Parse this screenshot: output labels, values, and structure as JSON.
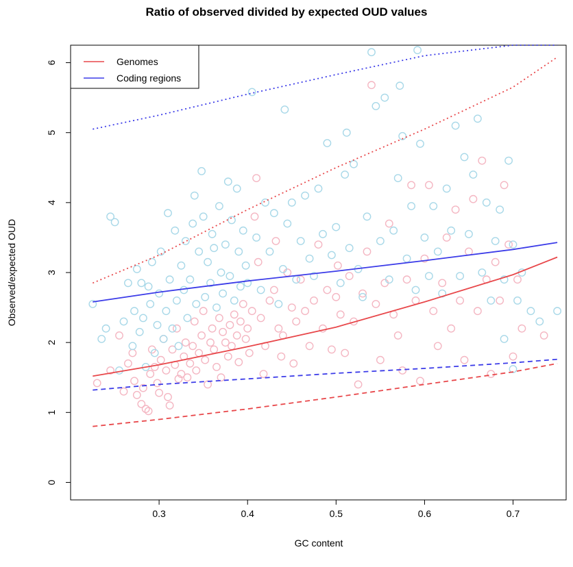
{
  "chart_data": {
    "type": "scatter",
    "title": "Ratio of observed divided by expected OUD values",
    "xlabel": "GC content",
    "ylabel": "Observed/expected OUD",
    "xlim": [
      0.2,
      0.76
    ],
    "ylim": [
      -0.25,
      6.25
    ],
    "x_ticks": [
      0.3,
      0.4,
      0.5,
      0.6,
      0.7
    ],
    "x_tick_labels": [
      "0.3",
      "0.4",
      "0.5",
      "0.6",
      "0.7"
    ],
    "y_ticks": [
      0,
      1,
      2,
      3,
      4,
      5,
      6
    ],
    "y_tick_labels": [
      "0",
      "1",
      "2",
      "3",
      "4",
      "5",
      "6"
    ],
    "grid": false,
    "legend_position": "top-left",
    "legend": [
      {
        "label": "Genomes",
        "color": "#e8474a"
      },
      {
        "label": "Coding regions",
        "color": "#3b3be8"
      }
    ],
    "colors": {
      "genomes_line": "#e8474a",
      "coding_line": "#3b3be8",
      "genomes_points": "#f4b6c2",
      "coding_points": "#a8d8e8"
    },
    "lines": [
      {
        "series": "Genomes",
        "style": "solid",
        "x": [
          0.225,
          0.3,
          0.4,
          0.5,
          0.6,
          0.7,
          0.75
        ],
        "y": [
          1.52,
          1.68,
          1.94,
          2.22,
          2.58,
          2.97,
          3.22
        ]
      },
      {
        "series": "Genomes",
        "style": "dashed",
        "x": [
          0.225,
          0.3,
          0.4,
          0.5,
          0.6,
          0.7,
          0.75
        ],
        "y": [
          0.8,
          0.9,
          1.05,
          1.22,
          1.4,
          1.58,
          1.7
        ]
      },
      {
        "series": "Genomes",
        "style": "dotted",
        "x": [
          0.225,
          0.3,
          0.4,
          0.5,
          0.6,
          0.7,
          0.75
        ],
        "y": [
          2.85,
          3.25,
          3.9,
          4.5,
          5.05,
          5.65,
          6.08
        ]
      },
      {
        "series": "Coding regions",
        "style": "solid",
        "x": [
          0.225,
          0.3,
          0.4,
          0.5,
          0.6,
          0.7,
          0.75
        ],
        "y": [
          2.58,
          2.72,
          2.88,
          3.02,
          3.17,
          3.33,
          3.43
        ]
      },
      {
        "series": "Coding regions",
        "style": "dashed",
        "x": [
          0.225,
          0.3,
          0.4,
          0.5,
          0.6,
          0.7,
          0.75
        ],
        "y": [
          1.32,
          1.4,
          1.48,
          1.56,
          1.63,
          1.71,
          1.76
        ]
      },
      {
        "series": "Coding regions",
        "style": "dotted",
        "x": [
          0.225,
          0.3,
          0.4,
          0.5,
          0.6,
          0.7,
          0.75
        ],
        "y": [
          5.05,
          5.25,
          5.55,
          5.83,
          6.1,
          6.35,
          6.5
        ]
      }
    ],
    "series": [
      {
        "name": "Genomes",
        "points": [
          [
            0.23,
            1.42
          ],
          [
            0.245,
            1.6
          ],
          [
            0.255,
            2.1
          ],
          [
            0.26,
            1.3
          ],
          [
            0.265,
            1.7
          ],
          [
            0.27,
            1.85
          ],
          [
            0.272,
            1.45
          ],
          [
            0.275,
            1.25
          ],
          [
            0.28,
            1.12
          ],
          [
            0.282,
            1.35
          ],
          [
            0.285,
            1.05
          ],
          [
            0.288,
            1.02
          ],
          [
            0.29,
            1.55
          ],
          [
            0.292,
            1.9
          ],
          [
            0.295,
            1.65
          ],
          [
            0.298,
            1.42
          ],
          [
            0.3,
            1.28
          ],
          [
            0.302,
            1.75
          ],
          [
            0.305,
            2.05
          ],
          [
            0.308,
            1.6
          ],
          [
            0.31,
            1.22
          ],
          [
            0.312,
            1.1
          ],
          [
            0.315,
            1.9
          ],
          [
            0.318,
            1.68
          ],
          [
            0.32,
            2.2
          ],
          [
            0.322,
            1.48
          ],
          [
            0.325,
            1.55
          ],
          [
            0.328,
            1.8
          ],
          [
            0.33,
            2.0
          ],
          [
            0.332,
            1.5
          ],
          [
            0.335,
            1.7
          ],
          [
            0.338,
            1.95
          ],
          [
            0.34,
            2.3
          ],
          [
            0.342,
            1.6
          ],
          [
            0.345,
            1.85
          ],
          [
            0.348,
            2.1
          ],
          [
            0.35,
            2.45
          ],
          [
            0.352,
            1.75
          ],
          [
            0.355,
            1.4
          ],
          [
            0.358,
            2.0
          ],
          [
            0.36,
            2.2
          ],
          [
            0.362,
            1.9
          ],
          [
            0.365,
            1.65
          ],
          [
            0.368,
            2.35
          ],
          [
            0.37,
            1.5
          ],
          [
            0.372,
            2.15
          ],
          [
            0.375,
            2.0
          ],
          [
            0.378,
            1.8
          ],
          [
            0.38,
            2.25
          ],
          [
            0.382,
            1.95
          ],
          [
            0.385,
            2.4
          ],
          [
            0.388,
            2.1
          ],
          [
            0.39,
            1.72
          ],
          [
            0.392,
            2.3
          ],
          [
            0.395,
            2.55
          ],
          [
            0.398,
            2.05
          ],
          [
            0.4,
            2.2
          ],
          [
            0.402,
            1.85
          ],
          [
            0.405,
            2.45
          ],
          [
            0.408,
            3.8
          ],
          [
            0.41,
            4.35
          ],
          [
            0.412,
            3.15
          ],
          [
            0.415,
            2.35
          ],
          [
            0.418,
            1.55
          ],
          [
            0.42,
            1.95
          ],
          [
            0.425,
            2.6
          ],
          [
            0.43,
            2.75
          ],
          [
            0.432,
            3.45
          ],
          [
            0.435,
            2.2
          ],
          [
            0.438,
            1.8
          ],
          [
            0.44,
            2.1
          ],
          [
            0.445,
            3.0
          ],
          [
            0.45,
            2.5
          ],
          [
            0.452,
            1.7
          ],
          [
            0.455,
            2.3
          ],
          [
            0.46,
            2.9
          ],
          [
            0.465,
            2.45
          ],
          [
            0.47,
            1.95
          ],
          [
            0.475,
            2.6
          ],
          [
            0.48,
            3.4
          ],
          [
            0.485,
            2.2
          ],
          [
            0.49,
            2.75
          ],
          [
            0.495,
            1.9
          ],
          [
            0.5,
            2.65
          ],
          [
            0.502,
            3.1
          ],
          [
            0.505,
            2.4
          ],
          [
            0.51,
            1.85
          ],
          [
            0.515,
            2.95
          ],
          [
            0.52,
            2.3
          ],
          [
            0.525,
            1.4
          ],
          [
            0.53,
            2.7
          ],
          [
            0.535,
            3.3
          ],
          [
            0.54,
            5.68
          ],
          [
            0.545,
            2.55
          ],
          [
            0.55,
            1.75
          ],
          [
            0.555,
            2.85
          ],
          [
            0.56,
            3.7
          ],
          [
            0.565,
            2.4
          ],
          [
            0.57,
            2.1
          ],
          [
            0.575,
            1.6
          ],
          [
            0.58,
            2.9
          ],
          [
            0.585,
            4.25
          ],
          [
            0.59,
            2.6
          ],
          [
            0.595,
            1.45
          ],
          [
            0.6,
            3.2
          ],
          [
            0.605,
            4.25
          ],
          [
            0.61,
            2.45
          ],
          [
            0.615,
            1.95
          ],
          [
            0.62,
            2.85
          ],
          [
            0.625,
            3.5
          ],
          [
            0.63,
            2.2
          ],
          [
            0.635,
            3.9
          ],
          [
            0.64,
            2.6
          ],
          [
            0.645,
            1.75
          ],
          [
            0.65,
            3.3
          ],
          [
            0.655,
            4.05
          ],
          [
            0.66,
            2.45
          ],
          [
            0.665,
            4.6
          ],
          [
            0.67,
            2.9
          ],
          [
            0.675,
            1.55
          ],
          [
            0.68,
            3.15
          ],
          [
            0.685,
            2.6
          ],
          [
            0.69,
            4.25
          ],
          [
            0.695,
            3.4
          ],
          [
            0.7,
            1.8
          ],
          [
            0.705,
            2.9
          ],
          [
            0.71,
            2.2
          ],
          [
            0.735,
            2.1
          ]
        ]
      },
      {
        "name": "Coding regions",
        "points": [
          [
            0.225,
            2.55
          ],
          [
            0.235,
            2.05
          ],
          [
            0.24,
            2.2
          ],
          [
            0.245,
            3.8
          ],
          [
            0.25,
            3.72
          ],
          [
            0.255,
            1.6
          ],
          [
            0.26,
            2.3
          ],
          [
            0.265,
            2.85
          ],
          [
            0.27,
            1.95
          ],
          [
            0.272,
            2.45
          ],
          [
            0.275,
            3.05
          ],
          [
            0.278,
            2.15
          ],
          [
            0.28,
            2.85
          ],
          [
            0.282,
            2.35
          ],
          [
            0.285,
            1.65
          ],
          [
            0.288,
            2.8
          ],
          [
            0.29,
            2.55
          ],
          [
            0.292,
            3.15
          ],
          [
            0.295,
            1.85
          ],
          [
            0.298,
            2.25
          ],
          [
            0.3,
            2.7
          ],
          [
            0.302,
            3.3
          ],
          [
            0.305,
            2.05
          ],
          [
            0.308,
            2.45
          ],
          [
            0.31,
            3.85
          ],
          [
            0.312,
            2.9
          ],
          [
            0.315,
            2.2
          ],
          [
            0.318,
            3.6
          ],
          [
            0.32,
            2.6
          ],
          [
            0.322,
            1.95
          ],
          [
            0.325,
            3.1
          ],
          [
            0.328,
            2.75
          ],
          [
            0.33,
            3.45
          ],
          [
            0.332,
            2.35
          ],
          [
            0.335,
            2.9
          ],
          [
            0.338,
            3.7
          ],
          [
            0.34,
            4.1
          ],
          [
            0.342,
            2.55
          ],
          [
            0.345,
            3.3
          ],
          [
            0.348,
            4.45
          ],
          [
            0.35,
            3.8
          ],
          [
            0.352,
            2.65
          ],
          [
            0.355,
            3.15
          ],
          [
            0.358,
            2.85
          ],
          [
            0.36,
            3.55
          ],
          [
            0.362,
            3.35
          ],
          [
            0.365,
            2.5
          ],
          [
            0.368,
            3.95
          ],
          [
            0.37,
            3.0
          ],
          [
            0.372,
            2.7
          ],
          [
            0.375,
            3.4
          ],
          [
            0.378,
            4.3
          ],
          [
            0.38,
            2.95
          ],
          [
            0.382,
            3.75
          ],
          [
            0.385,
            2.6
          ],
          [
            0.388,
            4.2
          ],
          [
            0.39,
            3.3
          ],
          [
            0.392,
            2.8
          ],
          [
            0.395,
            3.6
          ],
          [
            0.398,
            3.1
          ],
          [
            0.4,
            2.85
          ],
          [
            0.405,
            5.58
          ],
          [
            0.41,
            3.5
          ],
          [
            0.415,
            2.75
          ],
          [
            0.42,
            4.0
          ],
          [
            0.425,
            3.3
          ],
          [
            0.43,
            3.85
          ],
          [
            0.435,
            2.55
          ],
          [
            0.44,
            3.05
          ],
          [
            0.442,
            5.33
          ],
          [
            0.445,
            3.7
          ],
          [
            0.45,
            4.0
          ],
          [
            0.455,
            2.9
          ],
          [
            0.46,
            3.45
          ],
          [
            0.465,
            4.1
          ],
          [
            0.47,
            3.2
          ],
          [
            0.475,
            2.95
          ],
          [
            0.48,
            4.2
          ],
          [
            0.485,
            3.55
          ],
          [
            0.49,
            4.85
          ],
          [
            0.495,
            3.25
          ],
          [
            0.5,
            3.65
          ],
          [
            0.505,
            2.85
          ],
          [
            0.51,
            4.4
          ],
          [
            0.512,
            5.0
          ],
          [
            0.515,
            3.35
          ],
          [
            0.52,
            4.55
          ],
          [
            0.525,
            3.05
          ],
          [
            0.53,
            2.65
          ],
          [
            0.535,
            3.8
          ],
          [
            0.54,
            6.15
          ],
          [
            0.545,
            5.38
          ],
          [
            0.55,
            3.45
          ],
          [
            0.555,
            5.5
          ],
          [
            0.56,
            2.9
          ],
          [
            0.565,
            3.6
          ],
          [
            0.57,
            4.35
          ],
          [
            0.572,
            5.67
          ],
          [
            0.575,
            4.95
          ],
          [
            0.58,
            3.2
          ],
          [
            0.585,
            3.95
          ],
          [
            0.59,
            2.75
          ],
          [
            0.592,
            6.18
          ],
          [
            0.595,
            4.84
          ],
          [
            0.6,
            3.5
          ],
          [
            0.605,
            2.95
          ],
          [
            0.61,
            3.95
          ],
          [
            0.615,
            3.3
          ],
          [
            0.62,
            2.7
          ],
          [
            0.625,
            4.2
          ],
          [
            0.63,
            3.6
          ],
          [
            0.635,
            5.1
          ],
          [
            0.64,
            2.95
          ],
          [
            0.645,
            4.65
          ],
          [
            0.65,
            3.55
          ],
          [
            0.655,
            4.4
          ],
          [
            0.66,
            5.2
          ],
          [
            0.665,
            3.0
          ],
          [
            0.67,
            4.0
          ],
          [
            0.675,
            2.6
          ],
          [
            0.68,
            3.45
          ],
          [
            0.685,
            3.9
          ],
          [
            0.69,
            2.9
          ],
          [
            0.695,
            4.6
          ],
          [
            0.7,
            3.4
          ],
          [
            0.705,
            2.6
          ],
          [
            0.71,
            3.0
          ],
          [
            0.72,
            2.45
          ],
          [
            0.73,
            2.3
          ],
          [
            0.75,
            2.45
          ],
          [
            0.7,
            1.62
          ],
          [
            0.69,
            2.05
          ]
        ]
      }
    ]
  }
}
